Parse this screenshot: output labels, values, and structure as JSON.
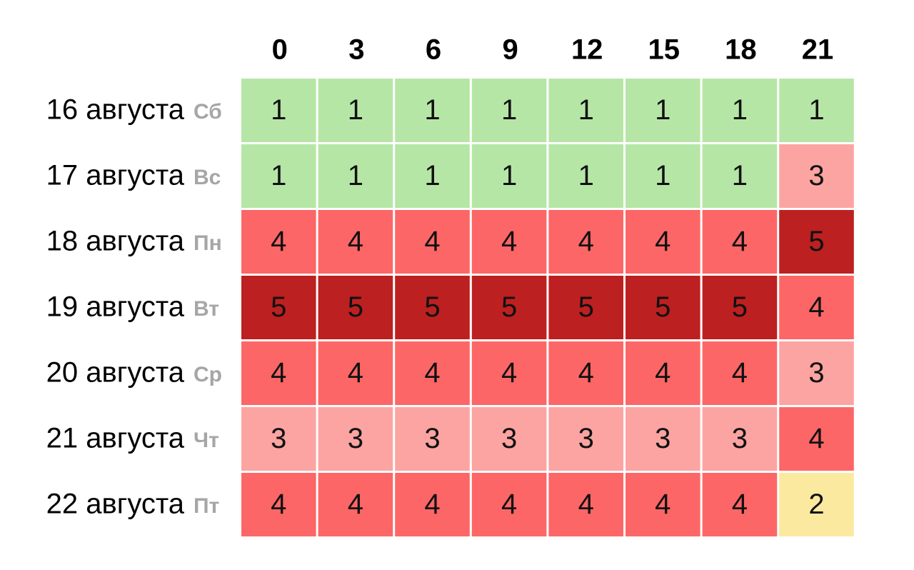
{
  "chart_data": {
    "type": "heatmap",
    "x": [
      "0",
      "3",
      "6",
      "9",
      "12",
      "15",
      "18",
      "21"
    ],
    "rows": [
      {
        "date": "16 августа",
        "day": "Сб",
        "values": [
          1,
          1,
          1,
          1,
          1,
          1,
          1,
          1
        ]
      },
      {
        "date": "17 августа",
        "day": "Вс",
        "values": [
          1,
          1,
          1,
          1,
          1,
          1,
          1,
          3
        ]
      },
      {
        "date": "18 августа",
        "day": "Пн",
        "values": [
          4,
          4,
          4,
          4,
          4,
          4,
          4,
          5
        ]
      },
      {
        "date": "19 августа",
        "day": "Вт",
        "values": [
          5,
          5,
          5,
          5,
          5,
          5,
          5,
          4
        ]
      },
      {
        "date": "20 августа",
        "day": "Ср",
        "values": [
          4,
          4,
          4,
          4,
          4,
          4,
          4,
          3
        ]
      },
      {
        "date": "21 августа",
        "day": "Чт",
        "values": [
          3,
          3,
          3,
          3,
          3,
          3,
          3,
          4
        ]
      },
      {
        "date": "22 августа",
        "day": "Пт",
        "values": [
          4,
          4,
          4,
          4,
          4,
          4,
          4,
          2
        ]
      }
    ],
    "colors": {
      "1": "#b6e6a6",
      "2": "#fce9a0",
      "3": "#fca4a2",
      "4": "#fd6666",
      "5": "#bd2020"
    }
  }
}
